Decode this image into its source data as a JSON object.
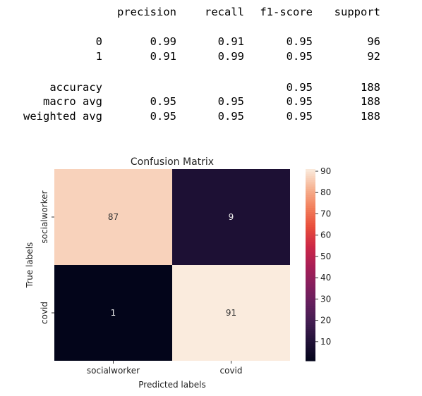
{
  "report": {
    "headers": [
      "precision",
      "recall",
      "f1-score",
      "support"
    ],
    "rows": [
      {
        "label": "0",
        "precision": "0.99",
        "recall": "0.91",
        "f1": "0.95",
        "support": "96"
      },
      {
        "label": "1",
        "precision": "0.91",
        "recall": "0.99",
        "f1": "0.95",
        "support": "92"
      },
      {
        "label": "accuracy",
        "precision": "",
        "recall": "",
        "f1": "0.95",
        "support": "188"
      },
      {
        "label": "macro avg",
        "precision": "0.95",
        "recall": "0.95",
        "f1": "0.95",
        "support": "188"
      },
      {
        "label": "weighted avg",
        "precision": "0.95",
        "recall": "0.95",
        "f1": "0.95",
        "support": "188"
      }
    ]
  },
  "chart_data": {
    "type": "heatmap",
    "title": "Confusion Matrix",
    "xlabel": "Predicted labels",
    "ylabel": "True labels",
    "x_categories": [
      "socialworker",
      "covid"
    ],
    "y_categories": [
      "socialworker",
      "covid"
    ],
    "values": [
      [
        87,
        9
      ],
      [
        1,
        91
      ]
    ],
    "colorbar": {
      "min": 1,
      "max": 91,
      "ticks": [
        10,
        20,
        30,
        40,
        50,
        60,
        70,
        80,
        90
      ],
      "colormap": "rocket"
    }
  }
}
